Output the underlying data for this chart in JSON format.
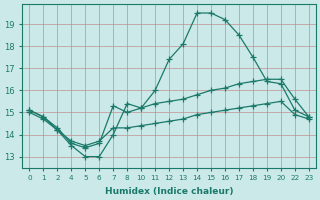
{
  "xlabel": "Humidex (Indice chaleur)",
  "bg_color": "#cce9e9",
  "grid_color": "#c09090",
  "line_color": "#1a7a6a",
  "xtick_labels": [
    "0",
    "1",
    "2",
    "4",
    "5",
    "6",
    "7",
    "8",
    "10",
    "11",
    "12",
    "13",
    "14",
    "15",
    "16",
    "17",
    "18",
    "19",
    "20",
    "22",
    "23"
  ],
  "yticks": [
    13,
    14,
    15,
    16,
    17,
    18,
    19
  ],
  "ylim": [
    12.5,
    19.9
  ],
  "lines": [
    {
      "y": [
        15.1,
        14.8,
        14.2,
        13.5,
        13.0,
        13.0,
        14.0,
        15.4,
        15.2,
        16.0,
        17.4,
        18.1,
        19.5,
        19.5,
        19.2,
        18.5,
        17.5,
        16.4,
        16.3,
        15.1,
        14.8
      ]
    },
    {
      "y": [
        15.1,
        14.8,
        14.3,
        13.6,
        13.4,
        13.6,
        15.3,
        15.0,
        15.2,
        15.4,
        15.5,
        15.6,
        15.8,
        16.0,
        16.1,
        16.3,
        16.4,
        16.5,
        16.5,
        15.6,
        14.8
      ]
    },
    {
      "y": [
        15.0,
        14.7,
        14.2,
        13.7,
        13.5,
        13.7,
        14.3,
        14.3,
        14.4,
        14.5,
        14.6,
        14.7,
        14.9,
        15.0,
        15.1,
        15.2,
        15.3,
        15.4,
        15.5,
        14.9,
        14.7
      ]
    }
  ]
}
